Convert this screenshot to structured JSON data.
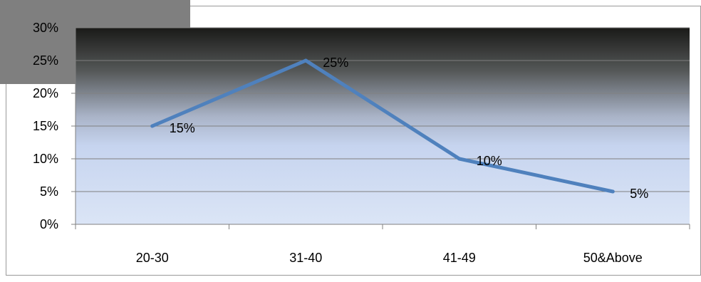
{
  "chart_data": {
    "type": "line",
    "categories": [
      "20-30",
      "31-40",
      "41-49",
      "50&Above"
    ],
    "series": [
      {
        "values": [
          15,
          25,
          10,
          5
        ],
        "data_labels": [
          "15%",
          "25%",
          "10%",
          "5%"
        ]
      }
    ],
    "y_ticks": [
      "0%",
      "5%",
      "10%",
      "15%",
      "20%",
      "25%",
      "30%"
    ],
    "ylim": [
      0,
      30
    ],
    "y_unit": "%",
    "grid": true,
    "legend": "none",
    "colors": {
      "line": "#4f81bd",
      "plot_top": "#1a1a18",
      "plot_bottom": "#dbe5f6",
      "gridline": "#808080",
      "frame": "#999999",
      "overlay_box": "#7f7f7f"
    }
  }
}
